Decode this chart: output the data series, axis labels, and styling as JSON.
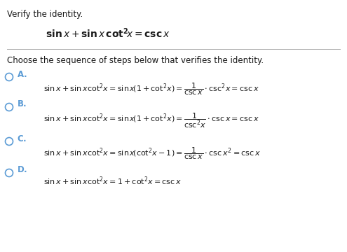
{
  "bg_color": "#ffffff",
  "text_color": "#1a1a1a",
  "math_color": "#1a1a1a",
  "label_color": "#5b9bd5",
  "line_color": "#aaaaaa",
  "title": "Verify the identity.",
  "identity_math": "$\\mathbf{sin}\\,x + \\mathbf{sin}\\,x\\,\\mathbf{cot}^{\\mathbf{2}}\\!x = \\mathbf{csc}\\,x$",
  "choose_text": "Choose the sequence of steps below that verifies the identity.",
  "opt_A_letter": "A.",
  "opt_A_math": "$\\sin x + \\sin x \\cot^2\\!x = \\sin x\\left(1 + \\cot^2\\!x\\right) = \\dfrac{1}{\\mathrm{csc}\\,x}\\cdot \\csc^2\\!x = \\csc x$",
  "opt_B_letter": "B.",
  "opt_B_math": "$\\sin x + \\sin x \\cot^2\\!x = \\sin x\\left(1 + \\cot^2\\!x\\right) = \\dfrac{1}{\\csc^2\\!x}\\cdot \\csc x = \\csc x$",
  "opt_C_letter": "C.",
  "opt_C_math": "$\\sin x + \\sin x \\cot^2\\!x = \\sin x\\left(\\cot^2\\!x - 1\\right) = \\dfrac{1}{\\mathrm{csc}\\,x}\\cdot \\csc x^2 = \\csc x$",
  "opt_D_letter": "D.",
  "opt_D_math": "$\\sin x + \\sin x \\cot^2\\!x = 1 + \\cot^2\\!x = \\csc x$",
  "title_fontsize": 8.5,
  "identity_fontsize": 10,
  "choose_fontsize": 8.5,
  "option_fontsize": 8.0,
  "letter_fontsize": 8.5
}
